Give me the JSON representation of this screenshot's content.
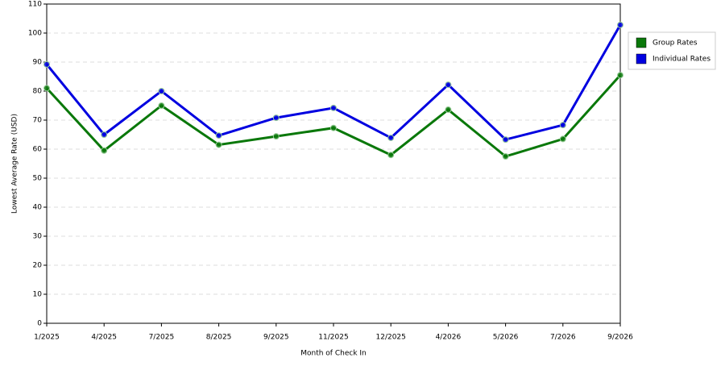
{
  "chart_data": {
    "type": "line",
    "xlabel": "Month of Check In",
    "ylabel": "Lowest Average Rate (USD)",
    "categories": [
      "1/2025",
      "4/2025",
      "7/2025",
      "8/2025",
      "9/2025",
      "11/2025",
      "12/2025",
      "4/2026",
      "5/2026",
      "7/2026",
      "9/2026"
    ],
    "series": [
      {
        "name": "Group Rates",
        "color": "#0a780a",
        "values": [
          81,
          59.5,
          75,
          61.5,
          64.4,
          67.3,
          58,
          73.6,
          57.5,
          63.5,
          85.5
        ]
      },
      {
        "name": "Individual Rates",
        "color": "#0000e0",
        "values": [
          89.2,
          65,
          80,
          64.7,
          70.8,
          74.2,
          63.9,
          82.2,
          63.3,
          68.3,
          102.8
        ]
      }
    ],
    "ylim": [
      0,
      110
    ],
    "yticks": [
      0,
      10,
      20,
      30,
      40,
      50,
      60,
      70,
      80,
      90,
      100,
      110
    ],
    "grid": true,
    "legend": "right"
  }
}
